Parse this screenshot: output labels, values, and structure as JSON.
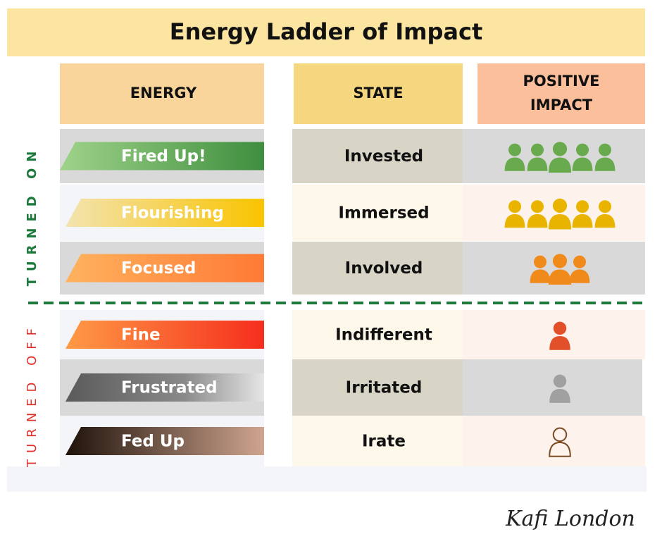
{
  "title": "Energy Ladder of Impact",
  "headers": {
    "energy": "ENERGY",
    "state": "STATE",
    "impact": "POSITIVE IMPACT"
  },
  "groups": {
    "on": "TURNED ON",
    "off": "TURNED OFF"
  },
  "rows": [
    {
      "energy": "Fired Up!",
      "state": "Invested"
    },
    {
      "energy": "Flourishing",
      "state": "Immersed"
    },
    {
      "energy": "Focused",
      "state": "Involved"
    },
    {
      "energy": "Fine",
      "state": "Indifferent"
    },
    {
      "energy": "Frustrated",
      "state": "Irritated"
    },
    {
      "energy": "Fed Up",
      "state": "Irate"
    }
  ],
  "signature": "Kafi London"
}
